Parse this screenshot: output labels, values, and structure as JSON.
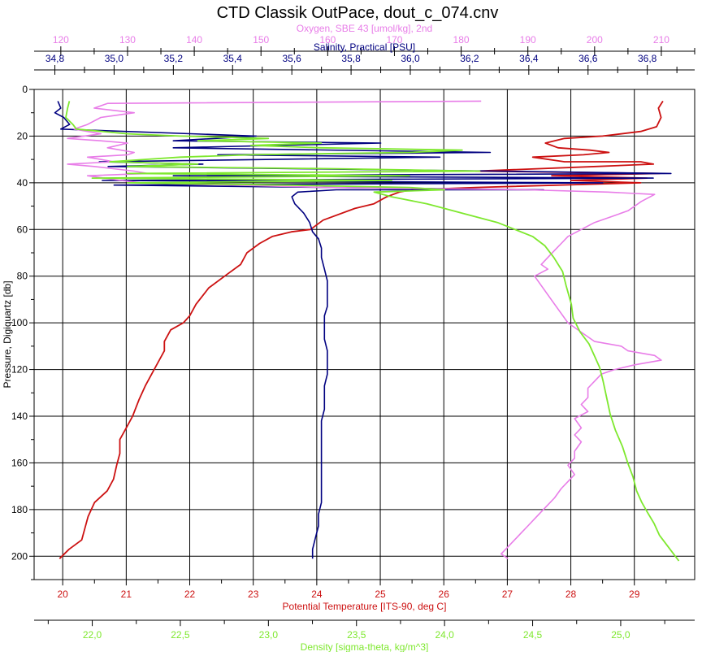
{
  "chart_data": {
    "type": "line",
    "title": "CTD Classik OutPace, dout_c_074.cnv",
    "y_axis": {
      "label": "Pressure, Digiquartz [db]",
      "range": [
        0,
        210
      ],
      "inverted": true,
      "ticks": [
        0,
        20,
        40,
        60,
        80,
        100,
        120,
        140,
        160,
        180,
        200
      ],
      "tick_labels": [
        "0",
        "20",
        "40",
        "60",
        "80",
        "100",
        "120",
        "140",
        "160",
        "180",
        "200"
      ]
    },
    "grid": true,
    "x_axes": [
      {
        "key": "oxygen",
        "label": "Oxygen, SBE 43 [umol/kg], 2nd",
        "position": "top-outer",
        "color": "#e87de8",
        "range": [
          116,
          215
        ],
        "ticks": [
          120,
          130,
          140,
          150,
          160,
          170,
          180,
          190,
          200,
          210
        ],
        "tick_labels": [
          "120",
          "130",
          "140",
          "150",
          "160",
          "170",
          "180",
          "190",
          "200",
          "210"
        ]
      },
      {
        "key": "salinity",
        "label": "Salinity, Practical [PSU]",
        "position": "top-inner",
        "color": "#000080",
        "range": [
          34.73,
          36.96
        ],
        "ticks": [
          34.8,
          35.0,
          35.2,
          35.4,
          35.6,
          35.8,
          36.0,
          36.2,
          36.4,
          36.6,
          36.8
        ],
        "tick_labels": [
          "34,8",
          "35,0",
          "35,2",
          "35,4",
          "35,6",
          "35,8",
          "36,0",
          "36,2",
          "36,4",
          "36,6",
          "36,8"
        ]
      },
      {
        "key": "temperature",
        "label": "Potential Temperature [ITS-90, deg C]",
        "position": "bottom-inner",
        "color": "#cc1111",
        "range": [
          19.55,
          29.95
        ],
        "ticks": [
          20,
          21,
          22,
          23,
          24,
          25,
          26,
          27,
          28,
          29
        ],
        "tick_labels": [
          "20",
          "21",
          "22",
          "23",
          "24",
          "25",
          "26",
          "27",
          "28",
          "29"
        ]
      },
      {
        "key": "density",
        "label": "Density [sigma-theta, kg/m^3]",
        "position": "bottom-outer",
        "color": "#7ee82e",
        "range": [
          21.67,
          25.42
        ],
        "ticks": [
          22.0,
          22.5,
          23.0,
          23.5,
          24.0,
          24.5,
          25.0
        ],
        "tick_labels": [
          "22,0",
          "22,5",
          "23,0",
          "23,5",
          "24,0",
          "24,5",
          "25,0"
        ]
      }
    ],
    "series": [
      {
        "axis": "temperature",
        "color": "#cc1111",
        "points": [
          [
            29.45,
            5
          ],
          [
            29.38,
            8
          ],
          [
            29.42,
            12
          ],
          [
            29.35,
            16
          ],
          [
            29.1,
            18
          ],
          [
            28.5,
            20
          ],
          [
            27.9,
            21
          ],
          [
            27.6,
            23
          ],
          [
            27.8,
            25
          ],
          [
            28.3,
            26
          ],
          [
            28.6,
            27
          ],
          [
            28.2,
            28
          ],
          [
            27.4,
            29
          ],
          [
            27.9,
            31
          ],
          [
            29.1,
            31
          ],
          [
            29.3,
            32
          ],
          [
            28.4,
            33
          ],
          [
            26.5,
            35
          ],
          [
            29.4,
            36
          ],
          [
            27.7,
            37
          ],
          [
            29.2,
            38
          ],
          [
            28.0,
            39
          ],
          [
            29.1,
            40
          ],
          [
            26.5,
            42
          ],
          [
            25.5,
            43
          ],
          [
            25.3,
            44
          ],
          [
            25.1,
            46
          ],
          [
            24.9,
            49
          ],
          [
            24.6,
            51
          ],
          [
            24.1,
            56
          ],
          [
            23.9,
            60
          ],
          [
            23.6,
            61
          ],
          [
            23.3,
            63
          ],
          [
            23.1,
            66
          ],
          [
            22.9,
            70
          ],
          [
            22.8,
            75
          ],
          [
            22.6,
            79
          ],
          [
            22.3,
            85
          ],
          [
            22.1,
            92
          ],
          [
            22.0,
            97
          ],
          [
            21.9,
            100
          ],
          [
            21.7,
            103
          ],
          [
            21.6,
            108
          ],
          [
            21.6,
            112
          ],
          [
            21.5,
            117
          ],
          [
            21.4,
            122
          ],
          [
            21.3,
            127
          ],
          [
            21.2,
            133
          ],
          [
            21.1,
            140
          ],
          [
            21.0,
            145
          ],
          [
            20.9,
            150
          ],
          [
            20.9,
            156
          ],
          [
            20.85,
            161
          ],
          [
            20.8,
            167
          ],
          [
            20.7,
            172
          ],
          [
            20.5,
            177
          ],
          [
            20.4,
            183
          ],
          [
            20.35,
            188
          ],
          [
            20.3,
            193
          ],
          [
            20.1,
            197
          ],
          [
            19.95,
            201
          ]
        ]
      },
      {
        "axis": "salinity",
        "color": "#000080",
        "points": [
          [
            34.81,
            5
          ],
          [
            34.82,
            8
          ],
          [
            34.8,
            10
          ],
          [
            34.83,
            12
          ],
          [
            34.85,
            15
          ],
          [
            34.82,
            17
          ],
          [
            35.48,
            20
          ],
          [
            35.2,
            22
          ],
          [
            35.9,
            23
          ],
          [
            35.2,
            25
          ],
          [
            36.27,
            27
          ],
          [
            35.35,
            28
          ],
          [
            36.1,
            29
          ],
          [
            34.95,
            31
          ],
          [
            35.3,
            32
          ],
          [
            34.98,
            33
          ],
          [
            36.3,
            35
          ],
          [
            36.88,
            36
          ],
          [
            35.2,
            37
          ],
          [
            36.82,
            38
          ],
          [
            34.96,
            39
          ],
          [
            36.65,
            40
          ],
          [
            35.0,
            41
          ],
          [
            36.45,
            43
          ],
          [
            35.75,
            43
          ],
          [
            35.62,
            44
          ],
          [
            35.6,
            46
          ],
          [
            35.61,
            49
          ],
          [
            35.64,
            53
          ],
          [
            35.66,
            57
          ],
          [
            35.67,
            61
          ],
          [
            35.69,
            64
          ],
          [
            35.7,
            68
          ],
          [
            35.7,
            72
          ],
          [
            35.71,
            77
          ],
          [
            35.72,
            82
          ],
          [
            35.72,
            87
          ],
          [
            35.72,
            93
          ],
          [
            35.71,
            97
          ],
          [
            35.71,
            102
          ],
          [
            35.71,
            107
          ],
          [
            35.72,
            112
          ],
          [
            35.72,
            117
          ],
          [
            35.72,
            122
          ],
          [
            35.71,
            127
          ],
          [
            35.71,
            132
          ],
          [
            35.71,
            137
          ],
          [
            35.7,
            142
          ],
          [
            35.7,
            147
          ],
          [
            35.7,
            152
          ],
          [
            35.7,
            157
          ],
          [
            35.7,
            162
          ],
          [
            35.7,
            167
          ],
          [
            35.7,
            172
          ],
          [
            35.7,
            177
          ],
          [
            35.69,
            182
          ],
          [
            35.69,
            187
          ],
          [
            35.68,
            192
          ],
          [
            35.67,
            197
          ],
          [
            35.67,
            201
          ]
        ]
      },
      {
        "axis": "oxygen",
        "color": "#e87de8",
        "points": [
          [
            183,
            5
          ],
          [
            127,
            6
          ],
          [
            125,
            8
          ],
          [
            131,
            10
          ],
          [
            126,
            12
          ],
          [
            124,
            15
          ],
          [
            122,
            17
          ],
          [
            126,
            19
          ],
          [
            121,
            21
          ],
          [
            126,
            22
          ],
          [
            130,
            23
          ],
          [
            127,
            25
          ],
          [
            131,
            27
          ],
          [
            130,
            28
          ],
          [
            124,
            29
          ],
          [
            128,
            31
          ],
          [
            121,
            32
          ],
          [
            125,
            33
          ],
          [
            131,
            35
          ],
          [
            133,
            36
          ],
          [
            124,
            37
          ],
          [
            129,
            39
          ],
          [
            132,
            40
          ],
          [
            160,
            42
          ],
          [
            190,
            43
          ],
          [
            202,
            44
          ],
          [
            209,
            45
          ],
          [
            207,
            48
          ],
          [
            206,
            50
          ],
          [
            205,
            52
          ],
          [
            203,
            54
          ],
          [
            200,
            57
          ],
          [
            198,
            60
          ],
          [
            196,
            63
          ],
          [
            195,
            66
          ],
          [
            194,
            69
          ],
          [
            193,
            72
          ],
          [
            192,
            75
          ],
          [
            193,
            77
          ],
          [
            191,
            80
          ],
          [
            192,
            84
          ],
          [
            193,
            88
          ],
          [
            194,
            92
          ],
          [
            195,
            96
          ],
          [
            196,
            100
          ],
          [
            198,
            104
          ],
          [
            200,
            108
          ],
          [
            204,
            110
          ],
          [
            205,
            112
          ],
          [
            209,
            114
          ],
          [
            210,
            116
          ],
          [
            206,
            118
          ],
          [
            203,
            120
          ],
          [
            201,
            122
          ],
          [
            200,
            125
          ],
          [
            199,
            128
          ],
          [
            199,
            132
          ],
          [
            198,
            135
          ],
          [
            199,
            138
          ],
          [
            197,
            141
          ],
          [
            198,
            145
          ],
          [
            197,
            148
          ],
          [
            198,
            151
          ],
          [
            197,
            155
          ],
          [
            197,
            158
          ],
          [
            196,
            161
          ],
          [
            197,
            165
          ],
          [
            196,
            168
          ],
          [
            195,
            171
          ],
          [
            194,
            175
          ],
          [
            193,
            178
          ],
          [
            192,
            181
          ],
          [
            191,
            184
          ],
          [
            190,
            187
          ],
          [
            189,
            190
          ],
          [
            188,
            193
          ],
          [
            187,
            196
          ],
          [
            186,
            199
          ],
          [
            187,
            201
          ]
        ]
      },
      {
        "axis": "density",
        "color": "#7ee82e",
        "points": [
          [
            21.87,
            5
          ],
          [
            21.86,
            8
          ],
          [
            21.85,
            12
          ],
          [
            21.89,
            15
          ],
          [
            21.91,
            17
          ],
          [
            22.2,
            19
          ],
          [
            22.5,
            20
          ],
          [
            23.0,
            21
          ],
          [
            22.6,
            22
          ],
          [
            23.3,
            23
          ],
          [
            22.9,
            24
          ],
          [
            23.3,
            25
          ],
          [
            24.1,
            26
          ],
          [
            23.8,
            27
          ],
          [
            22.9,
            28
          ],
          [
            22.5,
            29
          ],
          [
            22.3,
            30
          ],
          [
            22.1,
            31
          ],
          [
            22.6,
            32
          ],
          [
            22.2,
            33
          ],
          [
            23.4,
            34
          ],
          [
            24.2,
            35
          ],
          [
            22.2,
            36
          ],
          [
            23.8,
            37
          ],
          [
            22.0,
            38
          ],
          [
            23.7,
            39
          ],
          [
            22.2,
            40
          ],
          [
            23.1,
            41
          ],
          [
            23.8,
            42
          ],
          [
            24.0,
            43
          ],
          [
            23.6,
            44
          ],
          [
            23.7,
            46
          ],
          [
            23.9,
            49
          ],
          [
            24.1,
            53
          ],
          [
            24.3,
            57
          ],
          [
            24.4,
            60
          ],
          [
            24.5,
            63
          ],
          [
            24.57,
            67
          ],
          [
            24.62,
            72
          ],
          [
            24.67,
            78
          ],
          [
            24.69,
            84
          ],
          [
            24.72,
            92
          ],
          [
            24.73,
            98
          ],
          [
            24.77,
            104
          ],
          [
            24.82,
            109
          ],
          [
            24.85,
            114
          ],
          [
            24.88,
            119
          ],
          [
            24.9,
            125
          ],
          [
            24.92,
            132
          ],
          [
            24.94,
            139
          ],
          [
            24.97,
            146
          ],
          [
            25.01,
            153
          ],
          [
            25.04,
            160
          ],
          [
            25.07,
            166
          ],
          [
            25.09,
            172
          ],
          [
            25.12,
            177
          ],
          [
            25.15,
            181
          ],
          [
            25.19,
            186
          ],
          [
            25.22,
            191
          ],
          [
            25.27,
            196
          ],
          [
            25.3,
            199
          ],
          [
            25.33,
            202
          ]
        ]
      }
    ]
  }
}
